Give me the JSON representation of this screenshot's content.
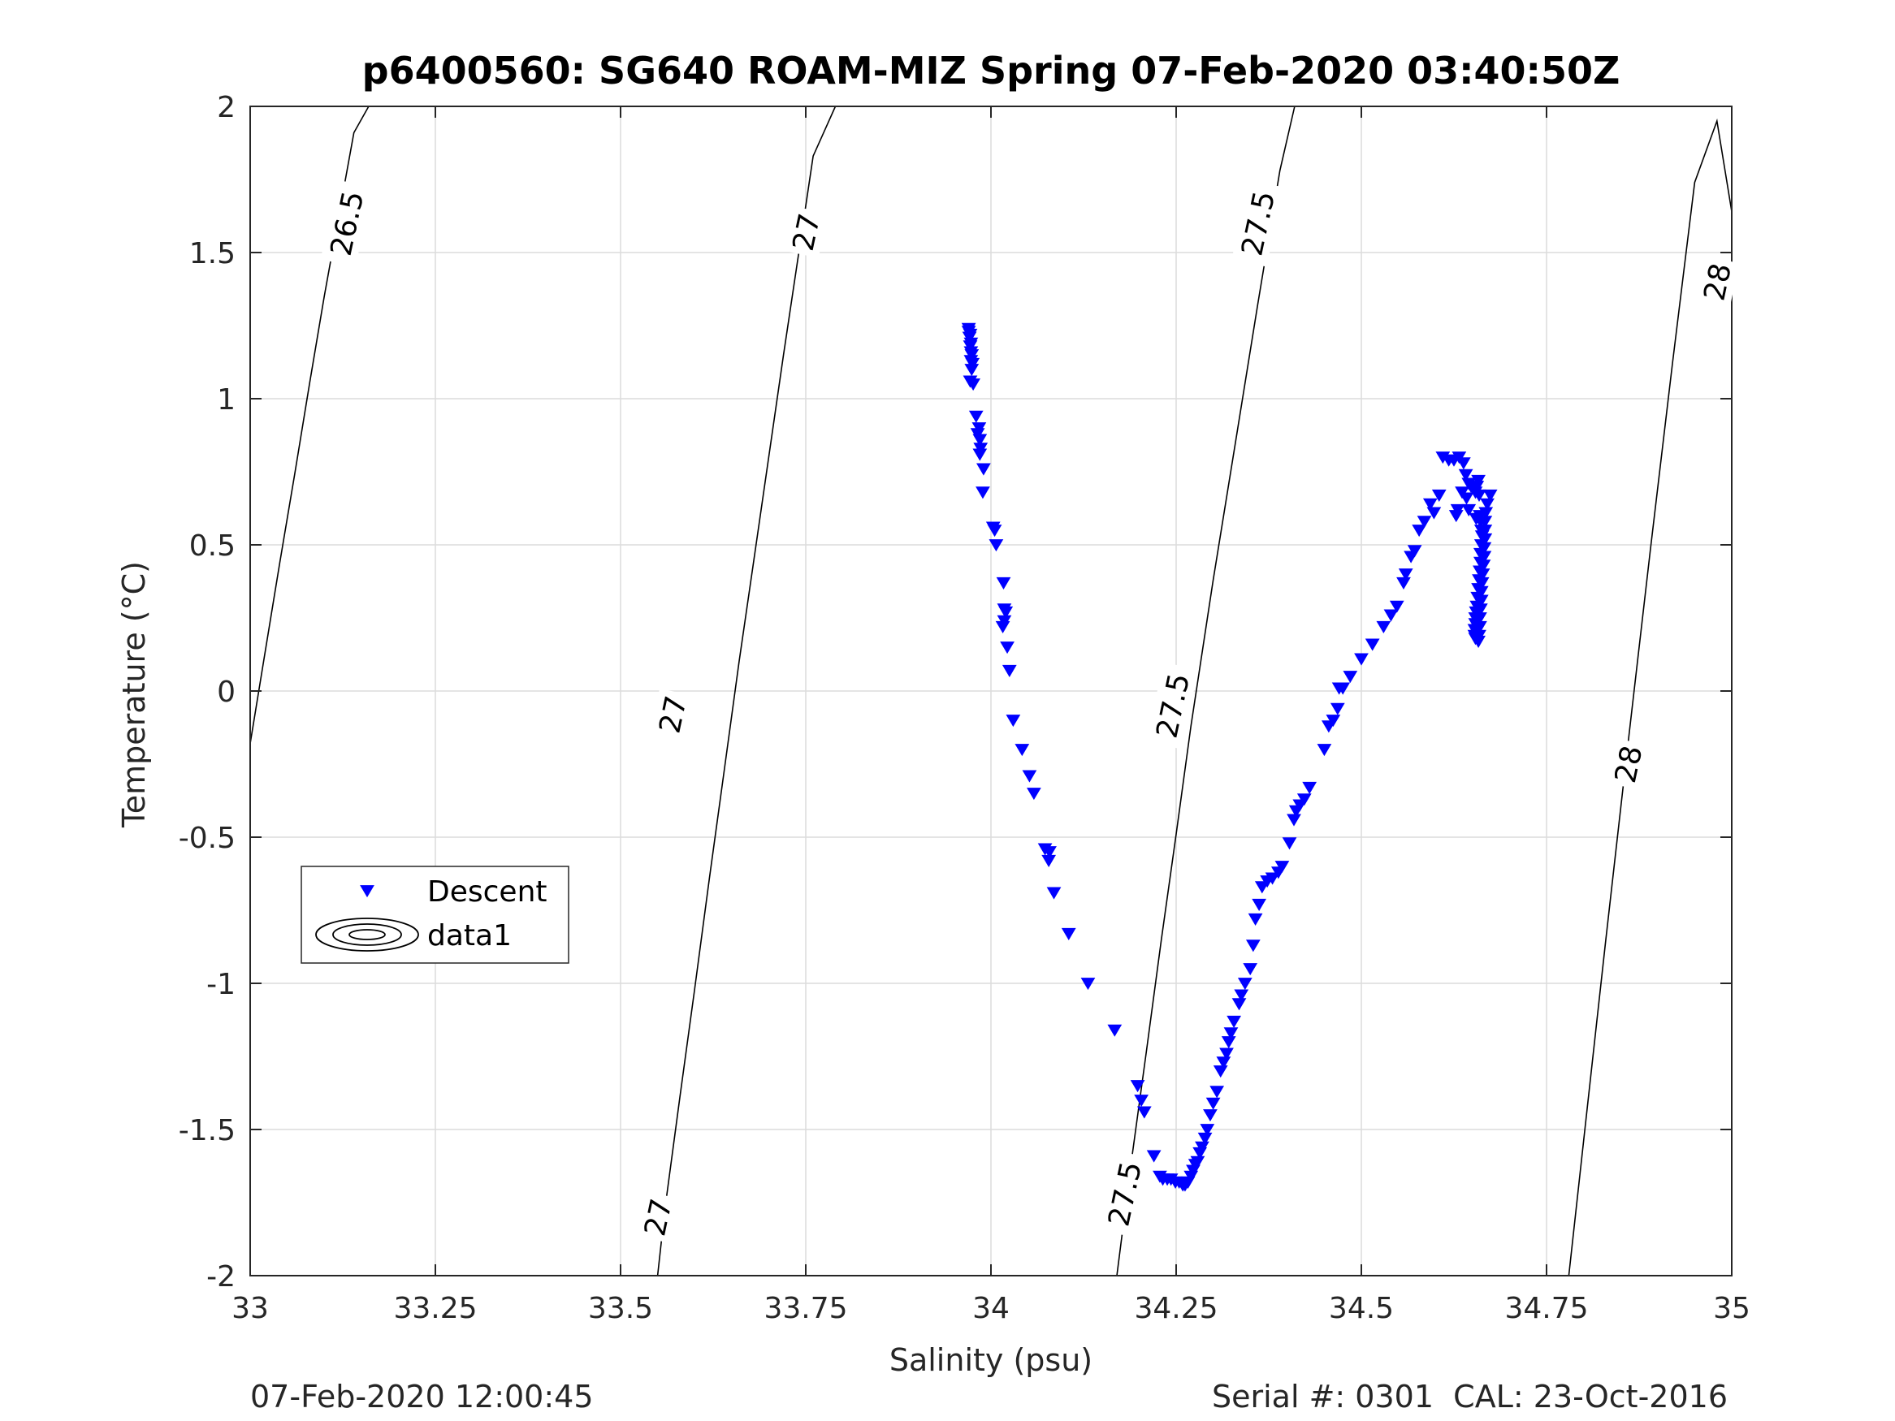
{
  "chart_data": {
    "type": "scatter",
    "title": "p6400560: SG640 ROAM-MIZ Spring 07-Feb-2020 03:40:50Z",
    "xlabel": "Salinity (psu)",
    "ylabel": "Temperature (°C)",
    "xlim": [
      33,
      35
    ],
    "ylim": [
      -2,
      2
    ],
    "x_ticks": [
      33,
      33.25,
      33.5,
      33.75,
      34,
      34.25,
      34.5,
      34.75,
      35
    ],
    "x_tick_labels": [
      "33",
      "33.25",
      "33.5",
      "33.75",
      "34",
      "34.25",
      "34.5",
      "34.75",
      "35"
    ],
    "y_ticks": [
      -2,
      -1.5,
      -1,
      -0.5,
      0,
      0.5,
      1,
      1.5,
      2
    ],
    "y_tick_labels": [
      "-2",
      "-1.5",
      "-1",
      "-0.5",
      "0",
      "0.5",
      "1",
      "1.5",
      "2"
    ],
    "grid": true,
    "legend": {
      "position": "left",
      "entries": [
        {
          "label": "Descent",
          "marker": "triangle-down",
          "color": "#0000ff"
        },
        {
          "label": "data1",
          "marker": "contour",
          "color": "#000000"
        }
      ]
    },
    "series": [
      {
        "name": "Descent",
        "marker": "triangle-down",
        "color": "#0000ff",
        "points": [
          [
            33.97,
            1.24
          ],
          [
            33.97,
            1.23
          ],
          [
            33.972,
            1.22
          ],
          [
            33.971,
            1.21
          ],
          [
            33.973,
            1.19
          ],
          [
            33.972,
            1.18
          ],
          [
            33.973,
            1.16
          ],
          [
            33.974,
            1.15
          ],
          [
            33.973,
            1.13
          ],
          [
            33.975,
            1.12
          ],
          [
            33.974,
            1.1
          ],
          [
            33.972,
            1.06
          ],
          [
            33.976,
            1.05
          ],
          [
            33.98,
            0.94
          ],
          [
            33.984,
            0.9
          ],
          [
            33.982,
            0.88
          ],
          [
            33.985,
            0.86
          ],
          [
            33.986,
            0.83
          ],
          [
            33.985,
            0.81
          ],
          [
            33.99,
            0.76
          ],
          [
            33.989,
            0.68
          ],
          [
            34.003,
            0.56
          ],
          [
            34.005,
            0.55
          ],
          [
            34.007,
            0.5
          ],
          [
            34.017,
            0.37
          ],
          [
            34.018,
            0.28
          ],
          [
            34.02,
            0.27
          ],
          [
            34.018,
            0.24
          ],
          [
            34.016,
            0.22
          ],
          [
            34.022,
            0.15
          ],
          [
            34.025,
            0.07
          ],
          [
            34.03,
            -0.1
          ],
          [
            34.042,
            -0.2
          ],
          [
            34.052,
            -0.29
          ],
          [
            34.058,
            -0.35
          ],
          [
            34.073,
            -0.54
          ],
          [
            34.079,
            -0.55
          ],
          [
            34.078,
            -0.58
          ],
          [
            34.085,
            -0.69
          ],
          [
            34.105,
            -0.83
          ],
          [
            34.131,
            -1.0
          ],
          [
            34.167,
            -1.16
          ],
          [
            34.198,
            -1.35
          ],
          [
            34.203,
            -1.4
          ],
          [
            34.207,
            -1.44
          ],
          [
            34.22,
            -1.59
          ],
          [
            34.228,
            -1.66
          ],
          [
            34.232,
            -1.67
          ],
          [
            34.238,
            -1.67
          ],
          [
            34.243,
            -1.67
          ],
          [
            34.249,
            -1.68
          ],
          [
            34.254,
            -1.68
          ],
          [
            34.259,
            -1.69
          ],
          [
            34.262,
            -1.69
          ],
          [
            34.266,
            -1.68
          ],
          [
            34.27,
            -1.66
          ],
          [
            34.273,
            -1.64
          ],
          [
            34.276,
            -1.62
          ],
          [
            34.279,
            -1.61
          ],
          [
            34.282,
            -1.58
          ],
          [
            34.285,
            -1.56
          ],
          [
            34.289,
            -1.53
          ],
          [
            34.292,
            -1.5
          ],
          [
            34.296,
            -1.45
          ],
          [
            34.3,
            -1.41
          ],
          [
            34.305,
            -1.37
          ],
          [
            34.31,
            -1.3
          ],
          [
            34.314,
            -1.27
          ],
          [
            34.318,
            -1.24
          ],
          [
            34.321,
            -1.2
          ],
          [
            34.324,
            -1.17
          ],
          [
            34.328,
            -1.13
          ],
          [
            34.335,
            -1.07
          ],
          [
            34.338,
            -1.04
          ],
          [
            34.343,
            -1.0
          ],
          [
            34.35,
            -0.95
          ],
          [
            34.354,
            -0.87
          ],
          [
            34.357,
            -0.78
          ],
          [
            34.362,
            -0.73
          ],
          [
            34.366,
            -0.67
          ],
          [
            34.373,
            -0.65
          ],
          [
            34.38,
            -0.64
          ],
          [
            34.388,
            -0.62
          ],
          [
            34.393,
            -0.6
          ],
          [
            34.403,
            -0.52
          ],
          [
            34.409,
            -0.44
          ],
          [
            34.412,
            -0.41
          ],
          [
            34.417,
            -0.39
          ],
          [
            34.423,
            -0.37
          ],
          [
            34.43,
            -0.33
          ],
          [
            34.45,
            -0.2
          ],
          [
            34.456,
            -0.12
          ],
          [
            34.462,
            -0.1
          ],
          [
            34.468,
            -0.06
          ],
          [
            34.47,
            0.01
          ],
          [
            34.475,
            0.01
          ],
          [
            34.485,
            0.05
          ],
          [
            34.5,
            0.11
          ],
          [
            34.515,
            0.16
          ],
          [
            34.53,
            0.22
          ],
          [
            34.54,
            0.26
          ],
          [
            34.548,
            0.29
          ],
          [
            34.557,
            0.37
          ],
          [
            34.56,
            0.4
          ],
          [
            34.567,
            0.46
          ],
          [
            34.572,
            0.48
          ],
          [
            34.578,
            0.55
          ],
          [
            34.585,
            0.58
          ],
          [
            34.593,
            0.64
          ],
          [
            34.598,
            0.61
          ],
          [
            34.605,
            0.67
          ],
          [
            34.61,
            0.8
          ],
          [
            34.618,
            0.79
          ],
          [
            34.625,
            0.79
          ],
          [
            34.632,
            0.8
          ],
          [
            34.638,
            0.78
          ],
          [
            34.641,
            0.74
          ],
          [
            34.645,
            0.71
          ],
          [
            34.648,
            0.7
          ],
          [
            34.652,
            0.69
          ],
          [
            34.654,
            0.68
          ],
          [
            34.656,
            0.7
          ],
          [
            34.658,
            0.72
          ],
          [
            34.659,
            0.67
          ],
          [
            34.66,
            0.6
          ],
          [
            34.661,
            0.58
          ],
          [
            34.662,
            0.55
          ],
          [
            34.663,
            0.53
          ],
          [
            34.662,
            0.5
          ],
          [
            34.661,
            0.47
          ],
          [
            34.661,
            0.44
          ],
          [
            34.66,
            0.41
          ],
          [
            34.659,
            0.38
          ],
          [
            34.658,
            0.35
          ],
          [
            34.657,
            0.32
          ],
          [
            34.656,
            0.29
          ],
          [
            34.655,
            0.27
          ],
          [
            34.654,
            0.25
          ],
          [
            34.654,
            0.23
          ],
          [
            34.653,
            0.21
          ],
          [
            34.653,
            0.19
          ],
          [
            34.654,
            0.18
          ],
          [
            34.667,
            0.58
          ],
          [
            34.667,
            0.55
          ],
          [
            34.667,
            0.52
          ],
          [
            34.666,
            0.49
          ],
          [
            34.666,
            0.46
          ],
          [
            34.665,
            0.43
          ],
          [
            34.664,
            0.4
          ],
          [
            34.663,
            0.37
          ],
          [
            34.662,
            0.34
          ],
          [
            34.662,
            0.31
          ],
          [
            34.661,
            0.28
          ],
          [
            34.66,
            0.25
          ],
          [
            34.66,
            0.22
          ],
          [
            34.659,
            0.19
          ],
          [
            34.658,
            0.17
          ],
          [
            34.674,
            0.67
          ],
          [
            34.67,
            0.64
          ],
          [
            34.668,
            0.61
          ],
          [
            34.655,
            0.59
          ],
          [
            34.645,
            0.62
          ],
          [
            34.642,
            0.66
          ],
          [
            34.636,
            0.68
          ],
          [
            34.63,
            0.62
          ],
          [
            34.628,
            0.6
          ]
        ]
      },
      {
        "name": "data1",
        "type": "contour",
        "color": "#000000",
        "levels": [
          {
            "level": "26.5",
            "points": [
              [
                33.0,
                -0.18
              ],
              [
                33.02,
                0.13
              ],
              [
                33.04,
                0.44
              ],
              [
                33.06,
                0.74
              ],
              [
                33.08,
                1.05
              ],
              [
                33.1,
                1.35
              ],
              [
                33.12,
                1.63
              ],
              [
                33.14,
                1.91
              ],
              [
                33.16,
                2.0
              ]
            ]
          },
          {
            "level": "27",
            "points": [
              [
                33.55,
                -2.0
              ],
              [
                33.56,
                -1.77
              ],
              [
                33.58,
                -1.39
              ],
              [
                33.6,
                -1.02
              ],
              [
                33.62,
                -0.64
              ],
              [
                33.64,
                -0.27
              ],
              [
                33.66,
                0.1
              ],
              [
                33.68,
                0.45
              ],
              [
                33.7,
                0.8
              ],
              [
                33.72,
                1.15
              ],
              [
                33.74,
                1.49
              ],
              [
                33.76,
                1.83
              ],
              [
                33.79,
                2.0
              ]
            ]
          },
          {
            "level": "27.5",
            "points": [
              [
                34.17,
                -2.0
              ],
              [
                34.19,
                -1.6
              ],
              [
                34.21,
                -1.23
              ],
              [
                34.23,
                -0.85
              ],
              [
                34.25,
                -0.49
              ],
              [
                34.27,
                -0.12
              ],
              [
                34.3,
                0.38
              ],
              [
                34.33,
                0.85
              ],
              [
                34.36,
                1.32
              ],
              [
                34.39,
                1.78
              ],
              [
                34.41,
                2.0
              ]
            ]
          },
          {
            "level": "28",
            "points": [
              [
                34.78,
                -2.0
              ],
              [
                34.8,
                -1.54
              ],
              [
                34.83,
                -0.85
              ],
              [
                34.86,
                -0.18
              ],
              [
                34.89,
                0.48
              ],
              [
                34.92,
                1.12
              ],
              [
                34.95,
                1.74
              ],
              [
                34.98,
                1.95
              ],
              [
                35.0,
                1.64
              ]
            ]
          }
        ]
      }
    ]
  },
  "contour_labels": [
    {
      "text": "26.5",
      "x": 33.13,
      "y": 1.6
    },
    {
      "text": "27",
      "x": 33.57,
      "y": -0.08
    },
    {
      "text": "27",
      "x": 33.55,
      "y": -1.8
    },
    {
      "text": "27",
      "x": 33.75,
      "y": 1.57
    },
    {
      "text": "27.5",
      "x": 34.245,
      "y": -0.05
    },
    {
      "text": "27.5",
      "x": 34.18,
      "y": -1.72
    },
    {
      "text": "27.5",
      "x": 34.36,
      "y": 1.6
    },
    {
      "text": "28",
      "x": 34.86,
      "y": -0.25
    },
    {
      "text": "28",
      "x": 34.98,
      "y": 1.4
    }
  ],
  "footer": {
    "date": "07-Feb-2020 12:00:45",
    "serial": "Serial #: 0301  CAL: 23-Oct-2016"
  }
}
